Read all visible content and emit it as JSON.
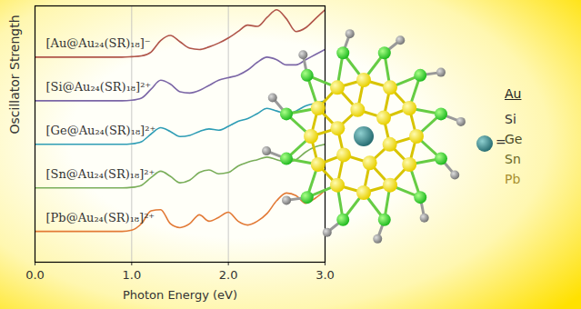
{
  "chart_data": {
    "type": "line",
    "xlabel": "Photon Energy (eV)",
    "ylabel": "Oscillator Strength",
    "x": [
      0.0,
      0.1,
      0.2,
      0.3,
      0.4,
      0.5,
      0.6,
      0.7,
      0.8,
      0.9,
      1.0,
      1.1,
      1.2,
      1.3,
      1.4,
      1.5,
      1.6,
      1.7,
      1.8,
      1.9,
      2.0,
      2.1,
      2.2,
      2.3,
      2.4,
      2.5,
      2.6,
      2.7,
      2.8,
      2.9,
      3.0
    ],
    "xlim": [
      0,
      3
    ],
    "xticks": [
      {
        "value": 0,
        "label": "0.0"
      },
      {
        "value": 1,
        "label": "1.0"
      },
      {
        "value": 2,
        "label": "2.0"
      },
      {
        "value": 3,
        "label": "3.0"
      }
    ],
    "ylim": [
      0,
      10
    ],
    "tick_labels": "x",
    "grid": true,
    "series": [
      {
        "name": "[Au@Au₂₄(SR)₁₈]⁻",
        "color": "#b0554a",
        "values": [
          8,
          8,
          8,
          8,
          8,
          8,
          8,
          8,
          8,
          8,
          8.02,
          8.05,
          8.2,
          8.65,
          8.85,
          8.6,
          8.35,
          8.3,
          8.4,
          8.55,
          8.75,
          9.0,
          9.25,
          9.2,
          9.55,
          9.85,
          9.5,
          9.0,
          9.15,
          9.5,
          9.85
        ]
      },
      {
        "name": "[Si@Au₂₄(SR)₁₈]²⁺",
        "color": "#7b66a6",
        "values": [
          6.3,
          6.3,
          6.3,
          6.3,
          6.3,
          6.3,
          6.3,
          6.3,
          6.3,
          6.3,
          6.32,
          6.4,
          6.75,
          7.1,
          6.95,
          6.65,
          6.6,
          6.7,
          6.9,
          7.1,
          7.2,
          7.3,
          7.5,
          7.8,
          8.0,
          7.9,
          7.7,
          7.7,
          7.9,
          8.1,
          8.3
        ]
      },
      {
        "name": "[Ge@Au₂₄(SR)₁₈]²⁺",
        "color": "#2e9db5",
        "values": [
          4.6,
          4.6,
          4.6,
          4.6,
          4.6,
          4.6,
          4.6,
          4.6,
          4.6,
          4.6,
          4.62,
          4.7,
          5.0,
          5.25,
          5.1,
          4.9,
          4.95,
          5.1,
          5.2,
          5.15,
          5.3,
          5.5,
          5.6,
          5.8,
          6.0,
          5.9,
          5.8,
          5.9,
          6.1,
          6.2,
          6.3
        ]
      },
      {
        "name": "[Sn@Au₂₄(SR)₁₈]²⁺",
        "color": "#7aae5a",
        "values": [
          2.9,
          2.9,
          2.9,
          2.9,
          2.9,
          2.9,
          2.9,
          2.9,
          2.9,
          2.9,
          2.92,
          3.0,
          3.3,
          3.55,
          3.35,
          3.1,
          3.2,
          3.5,
          3.6,
          3.45,
          3.5,
          3.75,
          3.9,
          4.0,
          4.1,
          4.0,
          3.9,
          4.0,
          4.3,
          4.5,
          4.6
        ]
      },
      {
        "name": "[Pb@Au₂₄(SR)₁₈]²⁺",
        "color": "#e27a36",
        "values": [
          1.2,
          1.2,
          1.2,
          1.2,
          1.2,
          1.2,
          1.2,
          1.2,
          1.2,
          1.2,
          1.25,
          1.5,
          2.0,
          2.05,
          1.5,
          1.35,
          1.5,
          1.85,
          1.6,
          1.75,
          1.95,
          1.6,
          1.45,
          1.6,
          1.9,
          2.4,
          2.7,
          2.6,
          2.3,
          2.5,
          2.8
        ]
      }
    ],
    "annotations": [
      {
        "text": "Au",
        "color": "#222222"
      },
      {
        "text": "Si",
        "color": "#333333"
      },
      {
        "text": "Ge",
        "color": "#4a4a26"
      },
      {
        "text": "Sn",
        "color": "#6b6a28"
      },
      {
        "text": "Pb",
        "color": "#a89030"
      },
      {
        "text": "=",
        "color": "#333333"
      }
    ]
  }
}
